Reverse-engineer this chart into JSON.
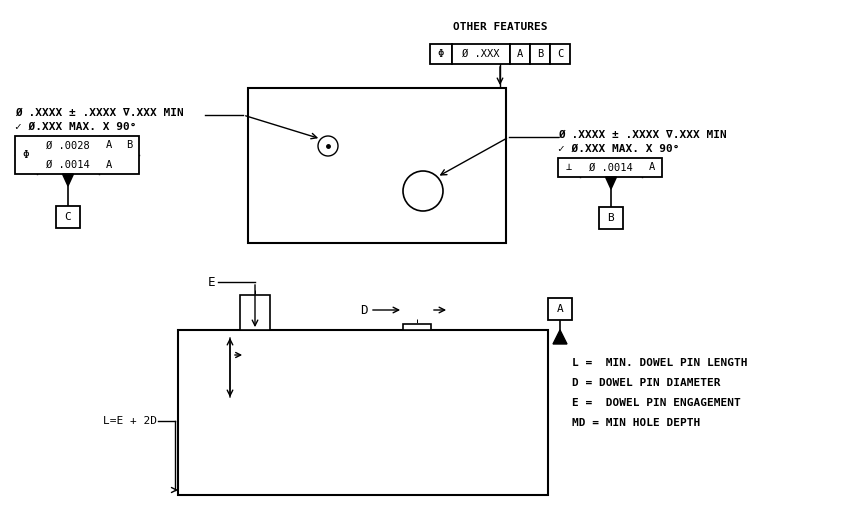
{
  "bg_color": "#ffffff",
  "line_color": "#000000",
  "fig_width": 8.64,
  "fig_height": 5.23,
  "other_features_label": "OTHER FEATURES",
  "other_features_frame": [
    "Φ",
    "Ø .XXX",
    "A",
    "B",
    "C"
  ],
  "left_note_line1": "Ø .XXXX ± .XXXX ∇.XXX MIN",
  "left_note_line2": "✓ Ø.XXX MAX. X 90°",
  "left_fcf_row1": [
    "Φ",
    "Ø .0028",
    "A",
    "B"
  ],
  "left_fcf_row2": [
    "Ø .0014",
    "A"
  ],
  "left_datum": "C",
  "right_note_line1": "Ø .XXXX ± .XXXX ∇.XXX MIN",
  "right_note_line2": "✓ Ø.XXX MAX. X 90°",
  "right_fcf": [
    "⊥",
    "Ø .0014",
    "A"
  ],
  "right_datum": "B",
  "legend_lines": [
    "L =  MIN. DOWEL PIN LENGTH",
    "D = DOWEL PIN DIAMETER",
    "E =  DOWEL PIN ENGAGEMENT",
    "MD = MIN HOLE DEPTH"
  ],
  "formula_label": "L=E + 2D",
  "dim_E_label": "E",
  "dim_D_label": "D",
  "datum_A_label": "A"
}
